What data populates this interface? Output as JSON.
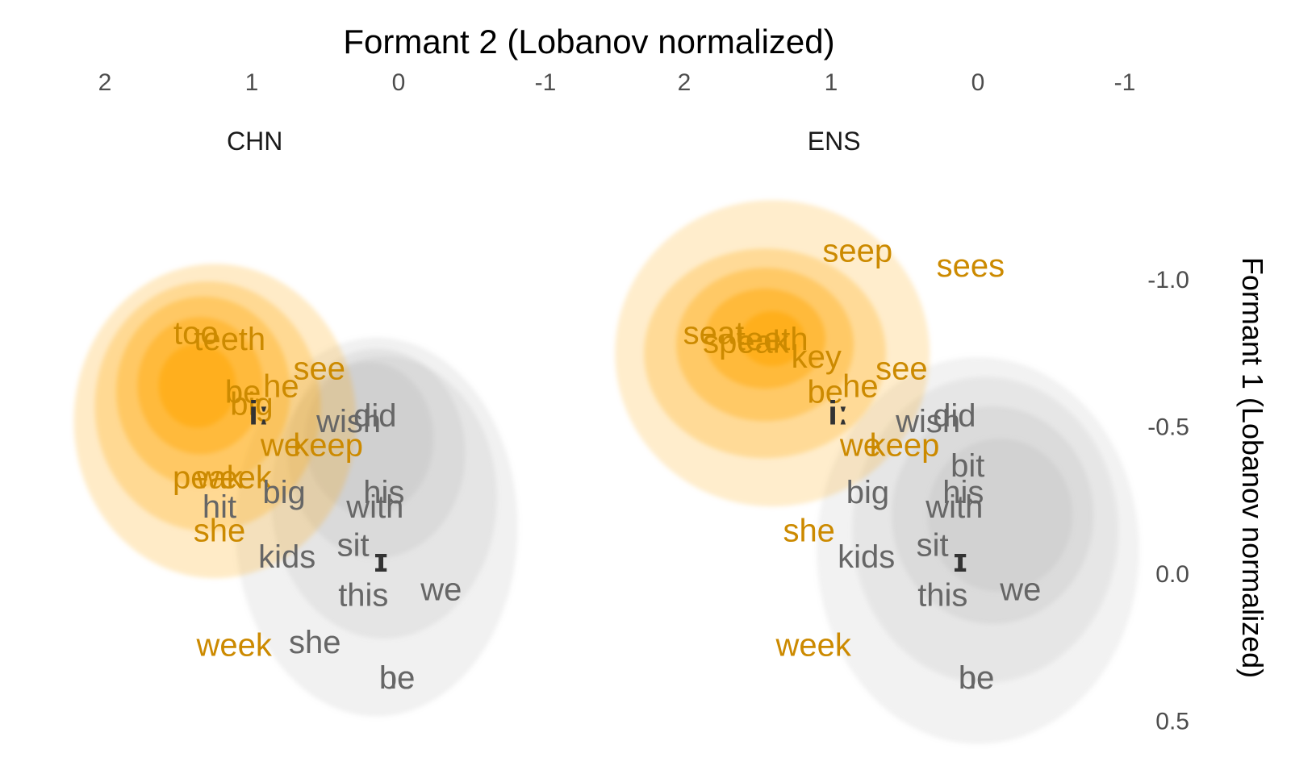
{
  "chart_data": {
    "type": "scatter",
    "xlabel": "Formant 2 (Lobanov normalized)",
    "ylabel": "Formant 1 (Lobanov normalized)",
    "x_position": "top",
    "y_position": "right",
    "x_reversed": true,
    "y_reversed": true,
    "xlim": [
      2.05,
      -1.15
    ],
    "ylim": [
      -1.98,
      0.52
    ],
    "x_ticks": [
      2,
      1,
      0,
      -1
    ],
    "x_tick_labels": [
      "2",
      "1",
      "0",
      "-1"
    ],
    "y_ticks": [
      -1.0,
      -0.5,
      0.0,
      0.5
    ],
    "y_tick_labels": [
      "-1.0",
      "-0.5",
      "0.0",
      "0.5"
    ],
    "grid": false,
    "legend": "none",
    "colors": {
      "i_long": "#cc8a00",
      "i_short": "#666666",
      "density_i_long": "#ffa500",
      "density_i_short": "#b3b3b3",
      "centroid": "#333333"
    },
    "panels": [
      {
        "label": "CHN",
        "words": [
          {
            "text": "too",
            "vowel": "i_long",
            "x": 1.38,
            "y": -0.82
          },
          {
            "text": "teeth",
            "vowel": "i_long",
            "x": 1.15,
            "y": -0.8
          },
          {
            "text": "be",
            "vowel": "i_long",
            "x": 1.06,
            "y": -0.62
          },
          {
            "text": "he",
            "vowel": "i_long",
            "x": 0.8,
            "y": -0.64
          },
          {
            "text": "big",
            "vowel": "i_long",
            "x": 1.0,
            "y": -0.58
          },
          {
            "text": "see",
            "vowel": "i_long",
            "x": 0.54,
            "y": -0.7
          },
          {
            "text": "we",
            "vowel": "i_long",
            "x": 0.8,
            "y": -0.44
          },
          {
            "text": "keep",
            "vowel": "i_long",
            "x": 0.48,
            "y": -0.44
          },
          {
            "text": "peak",
            "vowel": "i_long",
            "x": 1.3,
            "y": -0.33
          },
          {
            "text": "week",
            "vowel": "i_long",
            "x": 1.12,
            "y": -0.33
          },
          {
            "text": "she",
            "vowel": "i_long",
            "x": 1.22,
            "y": -0.15
          },
          {
            "text": "week",
            "vowel": "i_long",
            "x": 1.12,
            "y": 0.24
          },
          {
            "text": "did",
            "vowel": "i_short",
            "x": 0.16,
            "y": -0.54
          },
          {
            "text": "wish",
            "vowel": "i_short",
            "x": 0.34,
            "y": -0.52
          },
          {
            "text": "big",
            "vowel": "i_short",
            "x": 0.78,
            "y": -0.28
          },
          {
            "text": "his",
            "vowel": "i_short",
            "x": 0.1,
            "y": -0.28
          },
          {
            "text": "hit",
            "vowel": "i_short",
            "x": 1.22,
            "y": -0.23
          },
          {
            "text": "with",
            "vowel": "i_short",
            "x": 0.16,
            "y": -0.23
          },
          {
            "text": "kids",
            "vowel": "i_short",
            "x": 0.76,
            "y": -0.06
          },
          {
            "text": "sit",
            "vowel": "i_short",
            "x": 0.31,
            "y": -0.1
          },
          {
            "text": "this",
            "vowel": "i_short",
            "x": 0.24,
            "y": 0.07
          },
          {
            "text": "we",
            "vowel": "i_short",
            "x": -0.29,
            "y": 0.05
          },
          {
            "text": "she",
            "vowel": "i_short",
            "x": 0.57,
            "y": 0.23
          },
          {
            "text": "be",
            "vowel": "i_short",
            "x": 0.01,
            "y": 0.35
          },
          {
            "text": "he",
            "vowel": "i_short",
            "x": 0.01,
            "y": 0.35
          }
        ],
        "centroids": [
          {
            "label": "iː",
            "x": 0.95,
            "y": -0.55
          },
          {
            "label": "ɪ",
            "x": 0.12,
            "y": -0.05
          }
        ]
      },
      {
        "label": "ENS",
        "words": [
          {
            "text": "seep",
            "vowel": "i_long",
            "x": 0.82,
            "y": -1.1
          },
          {
            "text": "sees",
            "vowel": "i_long",
            "x": 0.05,
            "y": -1.05
          },
          {
            "text": "seat",
            "vowel": "i_long",
            "x": 1.8,
            "y": -0.82
          },
          {
            "text": "teeth",
            "vowel": "i_long",
            "x": 1.4,
            "y": -0.8
          },
          {
            "text": "speak",
            "vowel": "i_long",
            "x": 1.58,
            "y": -0.79
          },
          {
            "text": "key",
            "vowel": "i_long",
            "x": 1.1,
            "y": -0.74
          },
          {
            "text": "be",
            "vowel": "i_long",
            "x": 1.04,
            "y": -0.62
          },
          {
            "text": "he",
            "vowel": "i_long",
            "x": 0.8,
            "y": -0.64
          },
          {
            "text": "see",
            "vowel": "i_long",
            "x": 0.52,
            "y": -0.7
          },
          {
            "text": "we",
            "vowel": "i_long",
            "x": 0.8,
            "y": -0.44
          },
          {
            "text": "keep",
            "vowel": "i_long",
            "x": 0.5,
            "y": -0.44
          },
          {
            "text": "she",
            "vowel": "i_long",
            "x": 1.15,
            "y": -0.15
          },
          {
            "text": "week",
            "vowel": "i_long",
            "x": 1.12,
            "y": 0.24
          },
          {
            "text": "did",
            "vowel": "i_short",
            "x": 0.16,
            "y": -0.54
          },
          {
            "text": "wish",
            "vowel": "i_short",
            "x": 0.34,
            "y": -0.52
          },
          {
            "text": "bit",
            "vowel": "i_short",
            "x": 0.07,
            "y": -0.37
          },
          {
            "text": "big",
            "vowel": "i_short",
            "x": 0.75,
            "y": -0.28
          },
          {
            "text": "his",
            "vowel": "i_short",
            "x": 0.1,
            "y": -0.28
          },
          {
            "text": "with",
            "vowel": "i_short",
            "x": 0.16,
            "y": -0.23
          },
          {
            "text": "kids",
            "vowel": "i_short",
            "x": 0.76,
            "y": -0.06
          },
          {
            "text": "sit",
            "vowel": "i_short",
            "x": 0.31,
            "y": -0.1
          },
          {
            "text": "this",
            "vowel": "i_short",
            "x": 0.24,
            "y": 0.07
          },
          {
            "text": "we",
            "vowel": "i_short",
            "x": -0.29,
            "y": 0.05
          },
          {
            "text": "be",
            "vowel": "i_short",
            "x": 0.01,
            "y": 0.35
          },
          {
            "text": "he",
            "vowel": "i_short",
            "x": 0.01,
            "y": 0.35
          }
        ],
        "centroids": [
          {
            "label": "iː",
            "x": 0.95,
            "y": -0.55
          },
          {
            "label": "ɪ",
            "x": 0.12,
            "y": -0.05
          }
        ]
      }
    ]
  }
}
